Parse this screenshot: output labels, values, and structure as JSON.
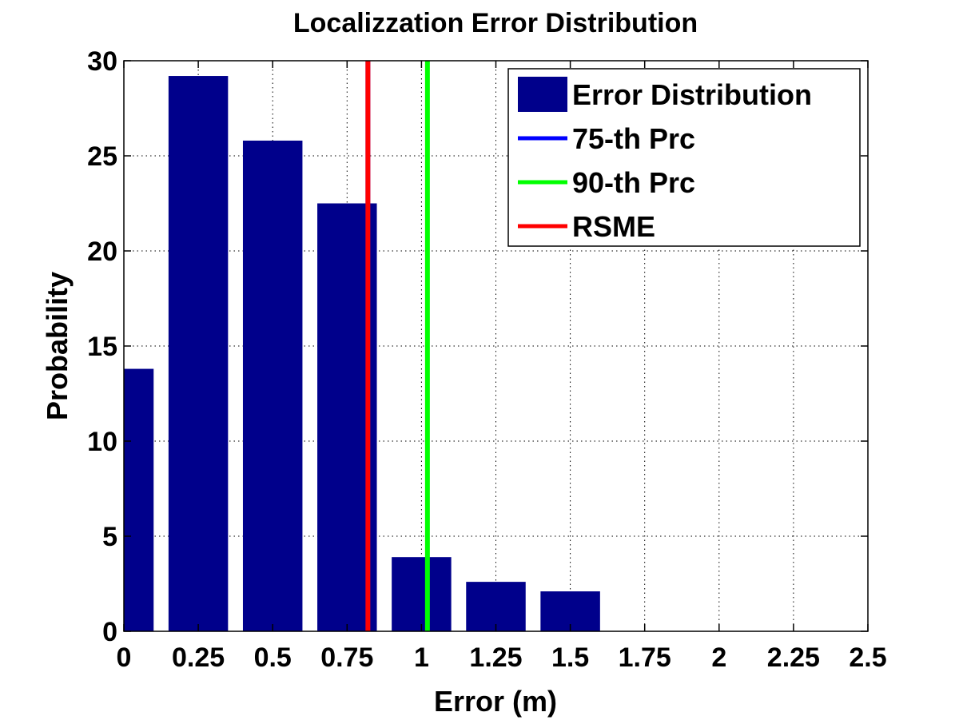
{
  "chart_data": {
    "type": "bar",
    "title": "Localizzation Error Distribution",
    "xlabel": "Error (m)",
    "ylabel": "Probability",
    "xlim": [
      0,
      2.5
    ],
    "ylim": [
      0,
      30
    ],
    "x_ticks": [
      0,
      0.25,
      0.5,
      0.75,
      1,
      1.25,
      1.5,
      1.75,
      2,
      2.25,
      2.5
    ],
    "x_tick_labels": [
      "0",
      "0.25",
      "0.5",
      "0.75",
      "1",
      "1.25",
      "1.5",
      "1.75",
      "2",
      "2.25",
      "2.5"
    ],
    "y_ticks": [
      0,
      5,
      10,
      15,
      20,
      25,
      30
    ],
    "y_tick_labels": [
      "0",
      "5",
      "10",
      "15",
      "20",
      "25",
      "30"
    ],
    "grid": true,
    "legend_position": "top-right",
    "bars": {
      "name": "Error Distribution",
      "color": "#00008B",
      "centers": [
        0,
        0.25,
        0.5,
        0.75,
        1,
        1.25,
        1.5
      ],
      "values": [
        13.8,
        29.2,
        25.8,
        22.5,
        3.9,
        2.6,
        2.1
      ]
    },
    "lines": [
      {
        "name": "75-th Prc",
        "x": 0.82,
        "color": "#0000FF"
      },
      {
        "name": "90-th Prc",
        "x": 1.02,
        "color": "#00FF00"
      },
      {
        "name": "RSME",
        "x": 0.82,
        "color": "#FF0000"
      }
    ]
  }
}
